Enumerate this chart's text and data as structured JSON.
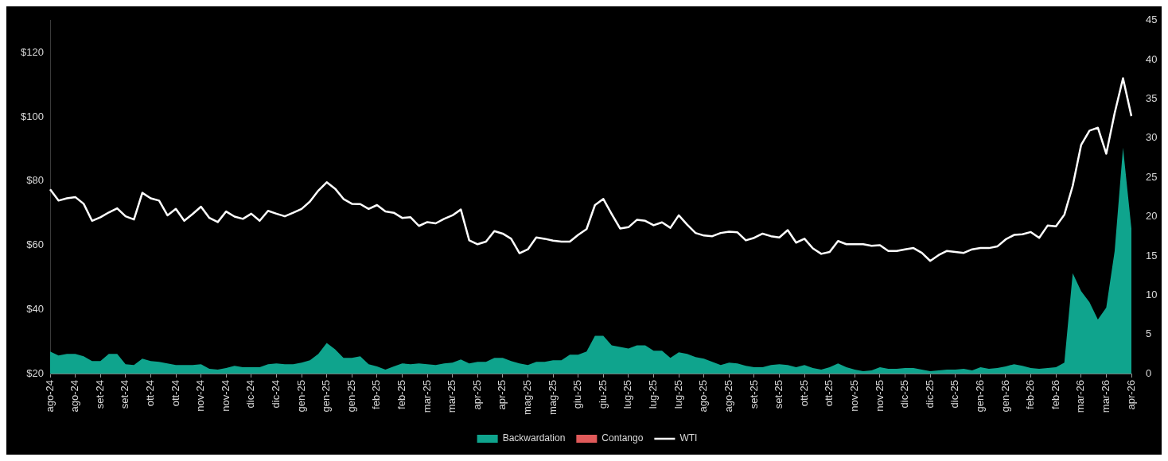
{
  "chart_data": {
    "type": "line",
    "categories": [
      "ago-24",
      null,
      null,
      "ago-24",
      null,
      null,
      "set-24",
      null,
      null,
      "set-24",
      null,
      null,
      "ott-24",
      null,
      null,
      "ott-24",
      null,
      null,
      "nov-24",
      null,
      null,
      "nov-24",
      null,
      null,
      "dic-24",
      null,
      null,
      "dic-24",
      null,
      null,
      "gen-25",
      null,
      null,
      "gen-25",
      null,
      null,
      "gen-25",
      null,
      null,
      "feb-25",
      null,
      null,
      "feb-25",
      null,
      null,
      "mar-25",
      null,
      null,
      "mar-25",
      null,
      null,
      "apr-25",
      null,
      null,
      "apr-25",
      null,
      null,
      "mag-25",
      null,
      null,
      "mag-25",
      null,
      null,
      "giu-25",
      null,
      null,
      "giu-25",
      null,
      null,
      "lug-25",
      null,
      null,
      "lug-25",
      null,
      null,
      "lug-25",
      null,
      null,
      "ago-25",
      null,
      null,
      "ago-25",
      null,
      null,
      "set-25",
      null,
      null,
      "set-25",
      null,
      null,
      "ott-25",
      null,
      null,
      "ott-25",
      null,
      null,
      "nov-25",
      null,
      null,
      "nov-25",
      null,
      null,
      "dic-25",
      null,
      null,
      "dic-25",
      null,
      null,
      "dic-25",
      null,
      null,
      "gen-26",
      null,
      null,
      "gen-26",
      null,
      null,
      "feb-26",
      null,
      null,
      "feb-26",
      null,
      null,
      "mar-26",
      null,
      null,
      "mar-26",
      null,
      null,
      "apr-26"
    ],
    "series": [
      {
        "name": "Backwardation",
        "type": "area",
        "axis": "y2",
        "color": "#0fa48d",
        "values": [
          2.8,
          2.3,
          2.5,
          2.5,
          2.2,
          1.6,
          1.6,
          2.5,
          2.5,
          1.2,
          1.1,
          1.9,
          1.6,
          1.5,
          1.3,
          1.1,
          1.1,
          1.1,
          1.2,
          0.6,
          0.5,
          0.7,
          1.0,
          0.8,
          0.8,
          0.8,
          1.2,
          1.3,
          1.2,
          1.2,
          1.4,
          1.7,
          2.5,
          3.9,
          3.1,
          2.0,
          2.0,
          2.2,
          1.2,
          0.9,
          0.5,
          0.9,
          1.3,
          1.2,
          1.3,
          1.2,
          1.1,
          1.3,
          1.4,
          1.8,
          1.3,
          1.5,
          1.5,
          2.0,
          2.0,
          1.6,
          1.3,
          1.1,
          1.5,
          1.5,
          1.7,
          1.7,
          2.4,
          2.4,
          2.8,
          4.8,
          4.8,
          3.6,
          3.4,
          3.2,
          3.6,
          3.6,
          2.9,
          2.9,
          2.0,
          2.7,
          2.5,
          2.1,
          1.9,
          1.5,
          1.1,
          1.4,
          1.3,
          1.0,
          0.8,
          0.8,
          1.1,
          1.2,
          1.1,
          0.8,
          1.1,
          0.7,
          0.5,
          0.8,
          1.3,
          0.8,
          0.5,
          0.3,
          0.4,
          0.8,
          0.6,
          0.6,
          0.7,
          0.7,
          0.5,
          0.3,
          0.4,
          0.5,
          0.5,
          0.6,
          0.4,
          0.8,
          0.6,
          0.7,
          0.9,
          1.2,
          1.0,
          0.7,
          0.6,
          0.7,
          0.8,
          1.4,
          12.8,
          10.5,
          9.1,
          6.9,
          8.4,
          15.6,
          28.8,
          18.5
        ]
      },
      {
        "name": "Contango",
        "type": "area",
        "axis": "y2",
        "color": "#e05a5a",
        "values": [
          null,
          null,
          null,
          null,
          null,
          null,
          null,
          null,
          null,
          null,
          null,
          null,
          null,
          null,
          null,
          null,
          null,
          null,
          null,
          null,
          null,
          null,
          null,
          null,
          null,
          null,
          null,
          null,
          null,
          null,
          null,
          null,
          null,
          null,
          null,
          null,
          null,
          null,
          null,
          null,
          null,
          null,
          null,
          null,
          null,
          null,
          null,
          null,
          null,
          null,
          null,
          null,
          null,
          null,
          null,
          null,
          null,
          null,
          null,
          null,
          null,
          null,
          null,
          null,
          null,
          null,
          null,
          null,
          null,
          null,
          null,
          null,
          null,
          null,
          null,
          null,
          null,
          null,
          null,
          null,
          null,
          null,
          null,
          null,
          null,
          null,
          null,
          null,
          null,
          null,
          null,
          null,
          null,
          null,
          null,
          null,
          null,
          null,
          null,
          null,
          null,
          null,
          null,
          null,
          null,
          null,
          null,
          null,
          null,
          null,
          null,
          null,
          null,
          null,
          null,
          null,
          null,
          null,
          null,
          null,
          null,
          null,
          null,
          null,
          null,
          null,
          null,
          null,
          null,
          null
        ]
      },
      {
        "name": "WTI",
        "type": "line",
        "color": "#ffffff",
        "values": [
          77.4,
          73.9,
          74.6,
          75.0,
          72.9,
          67.6,
          68.7,
          70.2,
          71.5,
          69.0,
          68.0,
          76.3,
          74.6,
          73.9,
          69.3,
          71.3,
          67.6,
          69.7,
          72.0,
          68.5,
          67.2,
          70.5,
          68.9,
          68.2,
          69.8,
          67.6,
          70.7,
          69.8,
          69.0,
          70.1,
          71.3,
          73.6,
          77.0,
          79.6,
          77.6,
          74.4,
          72.9,
          72.8,
          71.3,
          72.5,
          70.5,
          70.1,
          68.5,
          68.7,
          66.0,
          67.2,
          66.8,
          68.2,
          69.3,
          71.1,
          61.5,
          60.3,
          61.1,
          64.4,
          63.6,
          62.0,
          57.5,
          58.7,
          62.4,
          62.0,
          61.4,
          61.1,
          61.1,
          63.2,
          65.0,
          72.5,
          74.4,
          69.7,
          65.2,
          65.6,
          67.9,
          67.6,
          66.2,
          67.1,
          65.4,
          69.3,
          66.4,
          63.8,
          63.0,
          62.8,
          63.8,
          64.2,
          64.0,
          61.5,
          62.3,
          63.6,
          62.8,
          62.4,
          64.7,
          60.8,
          62.0,
          59.0,
          57.3,
          57.9,
          61.3,
          60.3,
          60.3,
          60.3,
          59.8,
          60.0,
          58.2,
          58.2,
          58.7,
          59.1,
          57.6,
          55.1,
          56.9,
          58.2,
          57.9,
          57.6,
          58.7,
          59.1,
          59.1,
          59.6,
          61.8,
          63.2,
          63.4,
          64.1,
          62.3,
          66.1,
          65.9,
          69.5,
          78.5,
          91.2,
          95.7,
          96.6,
          88.5,
          101.1,
          112.0,
          100.2
        ]
      }
    ],
    "ylim": [
      20,
      130
    ],
    "yticks": [
      {
        "value": 20,
        "label": "$20"
      },
      {
        "value": 40,
        "label": "$40"
      },
      {
        "value": 60,
        "label": "$60"
      },
      {
        "value": 80,
        "label": "$80"
      },
      {
        "value": 100,
        "label": "$100"
      },
      {
        "value": 120,
        "label": "$120"
      }
    ],
    "y2lim": [
      0,
      45
    ],
    "y2ticks": [
      0,
      5,
      10,
      15,
      20,
      25,
      30,
      35,
      40,
      45
    ],
    "grid": false,
    "legend": "bottom",
    "marker": "none",
    "line_style": "solid"
  }
}
